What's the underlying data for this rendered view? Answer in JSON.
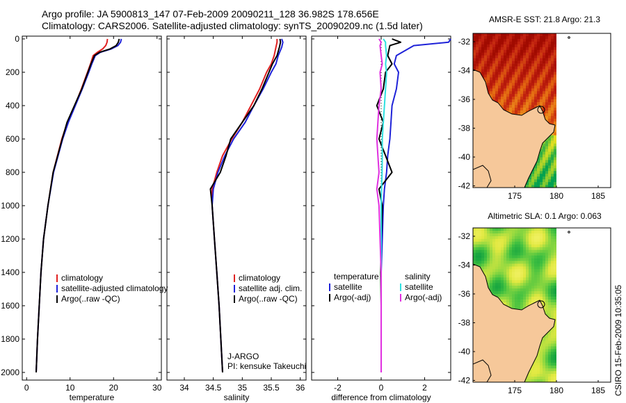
{
  "header": {
    "title_line1": "Argo profile: JA 5900813_147 07-Feb-2009 20090211_128 36.982S 178.656E",
    "title_line2": "Climatology: CARS2006. Satellite-adjusted climatology: synTS_20090209.nc (1.5d later)"
  },
  "colors": {
    "clim": "#e02020",
    "sat": "#1e22d8",
    "argo": "#000000",
    "cyan": "#2ee0e0",
    "magenta": "#e030e0",
    "land": "#f6c89a"
  },
  "chart_data": [
    {
      "id": "temperature",
      "type": "line",
      "xlabel": "temperature",
      "xlim": [
        -1,
        31
      ],
      "xticks": [
        "0",
        "10",
        "20",
        "30"
      ],
      "ylim": [
        2060,
        0
      ],
      "yticks": [
        "0",
        "200",
        "400",
        "600",
        "800",
        "1000",
        "1200",
        "1400",
        "1600",
        "1800",
        "2000"
      ],
      "depth": [
        0,
        20,
        40,
        60,
        80,
        100,
        150,
        200,
        300,
        400,
        500,
        600,
        800,
        1000,
        1200,
        1400,
        1600,
        1800,
        2000
      ],
      "series": [
        {
          "name": "climatology",
          "key": "clim",
          "values": [
            18.6,
            18.5,
            18.2,
            17.5,
            16.3,
            15.3,
            14.7,
            14.0,
            12.6,
            11.1,
            9.4,
            8.1,
            6.1,
            4.9,
            3.9,
            3.3,
            2.9,
            2.5,
            2.2
          ]
        },
        {
          "name": "satellite-adjusted climatology",
          "key": "sat",
          "values": [
            21.8,
            21.6,
            21.0,
            19.5,
            17.0,
            15.8,
            15.0,
            14.3,
            12.8,
            11.2,
            9.6,
            8.3,
            6.2,
            4.9,
            3.9,
            3.3,
            2.9,
            2.5,
            2.2
          ]
        },
        {
          "name": "Argo(..raw -QC)",
          "key": "argo",
          "values": [
            21.3,
            21.1,
            20.6,
            19.2,
            16.8,
            15.6,
            14.8,
            14.1,
            12.7,
            11.0,
            9.3,
            8.2,
            6.1,
            4.9,
            3.9,
            3.3,
            2.9,
            2.5,
            2.2
          ]
        }
      ],
      "legend": [
        "climatology",
        "satellite-adjusted climatology",
        "Argo(..raw -QC)"
      ]
    },
    {
      "id": "salinity",
      "type": "line",
      "xlabel": "salinity",
      "xlim": [
        33.7,
        36.1
      ],
      "xticks": [
        "34",
        "34.5",
        "35",
        "35.5",
        "36"
      ],
      "ylim": [
        2060,
        0
      ],
      "depth": [
        0,
        20,
        50,
        100,
        150,
        200,
        300,
        400,
        500,
        600,
        700,
        800,
        900,
        1000,
        1200,
        1400,
        1600,
        1800,
        2000
      ],
      "series": [
        {
          "name": "climatology",
          "key": "clim",
          "values": [
            35.6,
            35.6,
            35.58,
            35.55,
            35.5,
            35.42,
            35.3,
            35.15,
            35.0,
            34.82,
            34.66,
            34.56,
            34.48,
            34.48,
            34.52,
            34.56,
            34.6,
            34.63,
            34.66
          ]
        },
        {
          "name": "satellite adj. clim.",
          "key": "sat",
          "values": [
            35.68,
            35.7,
            35.68,
            35.62,
            35.58,
            35.5,
            35.36,
            35.2,
            35.05,
            34.85,
            34.7,
            34.58,
            34.5,
            34.48,
            34.52,
            34.56,
            34.6,
            34.63,
            34.66
          ]
        },
        {
          "name": "Argo(..raw -QC)",
          "key": "argo",
          "values": [
            35.65,
            35.66,
            35.64,
            35.6,
            35.52,
            35.46,
            35.34,
            35.2,
            35.0,
            34.8,
            34.72,
            34.62,
            34.45,
            34.48,
            34.52,
            34.56,
            34.6,
            34.63,
            34.66
          ]
        }
      ],
      "legend": [
        "climatology",
        "satellite adj. clim.",
        "Argo(..raw -QC)"
      ],
      "annotation": [
        "J-ARGO",
        "PI: kensuke Takeuchi"
      ]
    },
    {
      "id": "difference",
      "type": "line",
      "xlabel": "difference from climatology",
      "xlim": [
        -3.2,
        3.2
      ],
      "xticks": [
        "-2",
        "0",
        "2"
      ],
      "ylim": [
        2060,
        0
      ],
      "depth": [
        0,
        20,
        40,
        100,
        150,
        200,
        300,
        400,
        500,
        600,
        700,
        800,
        900,
        1000,
        1200,
        1400,
        1600,
        1800,
        2000
      ],
      "series": [
        {
          "name": "temperature satellite",
          "key": "sat",
          "values": [
            3.2,
            3.1,
            1.5,
            0.7,
            0.6,
            0.8,
            0.7,
            0.5,
            0.45,
            0.4,
            0.3,
            0.25,
            0.15,
            0.1,
            0.05,
            0.0,
            0.0,
            0.0,
            0.0
          ]
        },
        {
          "name": "temperature Argo(-adj)",
          "key": "argo",
          "values": [
            0.5,
            0.9,
            0.4,
            0.3,
            0.5,
            0.2,
            0.1,
            -0.2,
            0.1,
            -0.1,
            0.2,
            0.5,
            -0.1,
            0.05,
            0.0,
            -0.02,
            0.0,
            0.0,
            0.0
          ]
        },
        {
          "name": "salinity satellite",
          "key": "cyan",
          "values": [
            0.1,
            0.2,
            0.2,
            0.25,
            0.2,
            0.25,
            0.2,
            0.15,
            0.1,
            0.05,
            0.05,
            0.04,
            0.02,
            0.0,
            0.0,
            0.0,
            0.0,
            0.0,
            0.0
          ]
        },
        {
          "name": "salinity Argo(-adj)",
          "key": "magenta",
          "values": [
            -0.1,
            0.0,
            -0.05,
            0.0,
            0.05,
            -0.05,
            0.0,
            -0.1,
            -0.15,
            -0.2,
            -0.15,
            -0.1,
            -0.2,
            -0.1,
            -0.05,
            0.0,
            0.0,
            0.0,
            0.0
          ]
        }
      ],
      "legend_headers": [
        "temperature",
        "salinity"
      ],
      "legend_left": [
        "satellite",
        "Argo(-adj)"
      ],
      "legend_right": [
        "satellite",
        "Argo(-adj)"
      ]
    }
  ],
  "maps": [
    {
      "id": "sst",
      "title": "AMSR-E SST: 21.8 Argo: 21.3",
      "palette": "sst",
      "yticks": [
        "-32",
        "-34",
        "-36",
        "-38",
        "-40",
        "-42"
      ],
      "xticks": [
        "175",
        "180",
        "185"
      ]
    },
    {
      "id": "sla",
      "title": "Altimetric SLA: 0.1 Argo: 0.063",
      "palette": "sla",
      "yticks": [
        "-32",
        "-34",
        "-36",
        "-38",
        "-40",
        "-42"
      ],
      "xticks": [
        "175",
        "180",
        "185"
      ]
    }
  ],
  "footer": {
    "stamp": "CSIRO 15-Feb-2009 10:35:05"
  }
}
